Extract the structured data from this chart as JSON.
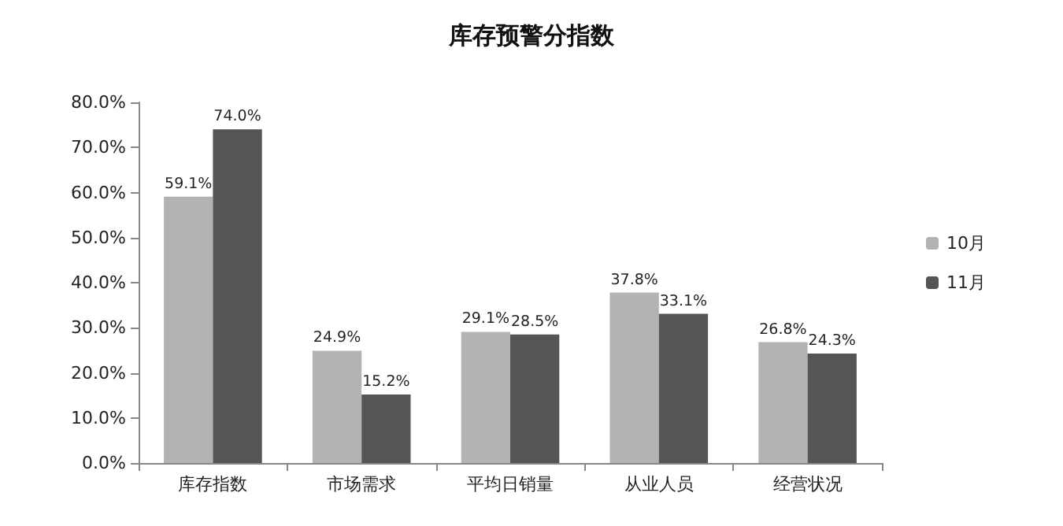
{
  "chart_data": {
    "type": "bar",
    "title": "库存预警分指数",
    "categories": [
      "库存指数",
      "市场需求",
      "平均日销量",
      "从业人员",
      "经营状况"
    ],
    "series": [
      {
        "name": "10月",
        "color": "#b3b3b3",
        "values": [
          59.1,
          24.9,
          29.1,
          37.8,
          26.8
        ],
        "value_labels": [
          "59.1%",
          "24.9%",
          "29.1%",
          "37.8%",
          "26.8%"
        ]
      },
      {
        "name": "11月",
        "color": "#555555",
        "values": [
          74.0,
          15.2,
          28.5,
          33.1,
          24.3
        ],
        "value_labels": [
          "74.0%",
          "15.2%",
          "28.5%",
          "33.1%",
          "24.3%"
        ]
      }
    ],
    "ylim": [
      0,
      80
    ],
    "yticks": [
      {
        "value": 0,
        "label": "0.0%"
      },
      {
        "value": 10,
        "label": "10.0%"
      },
      {
        "value": 20,
        "label": "20.0%"
      },
      {
        "value": 30,
        "label": "30.0%"
      },
      {
        "value": 40,
        "label": "40.0%"
      },
      {
        "value": 50,
        "label": "50.0%"
      },
      {
        "value": 60,
        "label": "60.0%"
      },
      {
        "value": 70,
        "label": "70.0%"
      },
      {
        "value": 80,
        "label": "80.0%"
      }
    ],
    "grid": false,
    "legend": "right"
  }
}
